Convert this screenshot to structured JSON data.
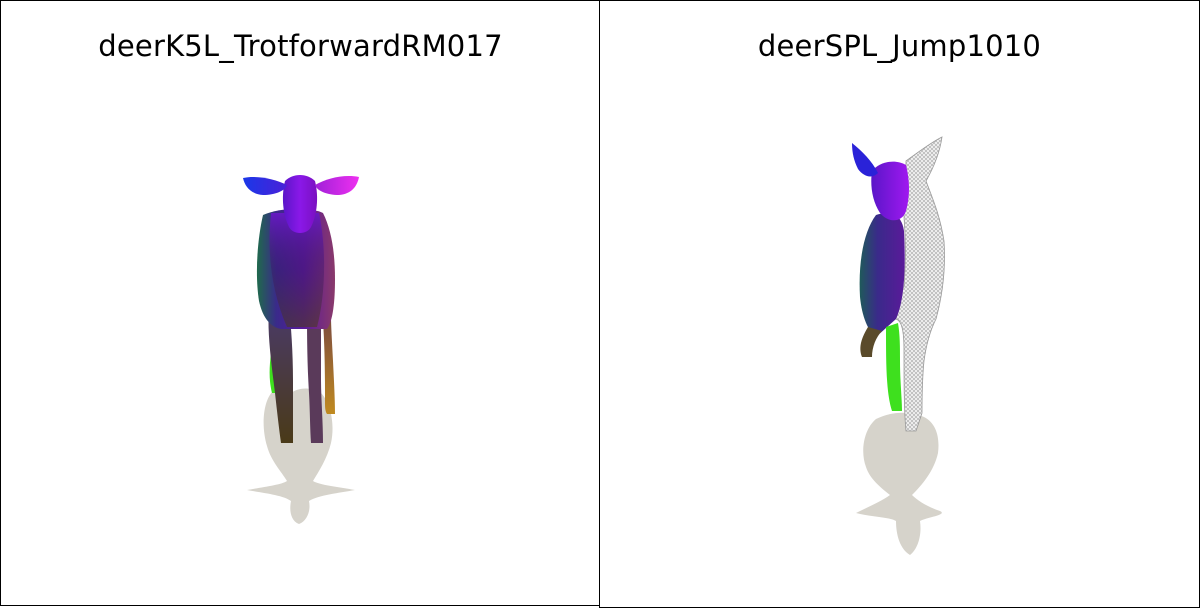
{
  "panels": [
    {
      "title": "deerK5L_TrotforwardRM017"
    },
    {
      "title": "deerSPL_Jump1010"
    }
  ],
  "colors": {
    "background": "#ffffff",
    "border": "#000000",
    "shadow": "#d6d3cb",
    "wireframe": "#bdbdbd",
    "mesh_purple": "#7a0fd8",
    "mesh_blue": "#2a2ad8",
    "mesh_magenta": "#d21ee6",
    "leg_green": "#37e01a",
    "leg_orange": "#d6a21a"
  }
}
